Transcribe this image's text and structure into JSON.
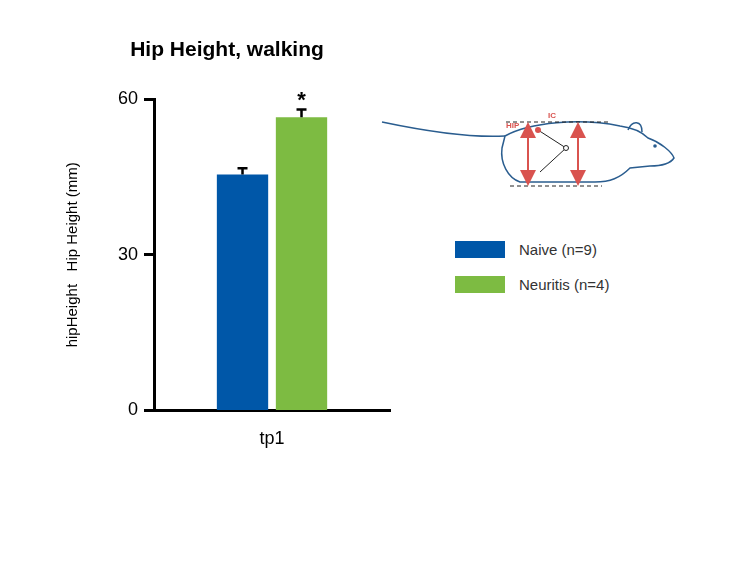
{
  "chart_data": {
    "type": "bar",
    "title": "Hip Height, walking",
    "ylabel": "hipHeight   Hip Height (mm)",
    "categories": [
      "tp1"
    ],
    "series": [
      {
        "name": "Naive (n=9)",
        "color": "#0057a8",
        "values": [
          45.5
        ],
        "errors": [
          1.2
        ]
      },
      {
        "name": "Neuritis (n=4)",
        "color": "#7dbb42",
        "values": [
          56.5
        ],
        "errors": [
          1.5
        ]
      }
    ],
    "ylim": [
      0,
      60
    ],
    "yticks": [
      0,
      30,
      60
    ],
    "grid": false,
    "legend": "right",
    "annotations": [
      {
        "text": "*",
        "category": "tp1",
        "series": "Neuritis (n=4)"
      }
    ],
    "diagram_labels": [
      "HIP",
      "IC"
    ]
  }
}
